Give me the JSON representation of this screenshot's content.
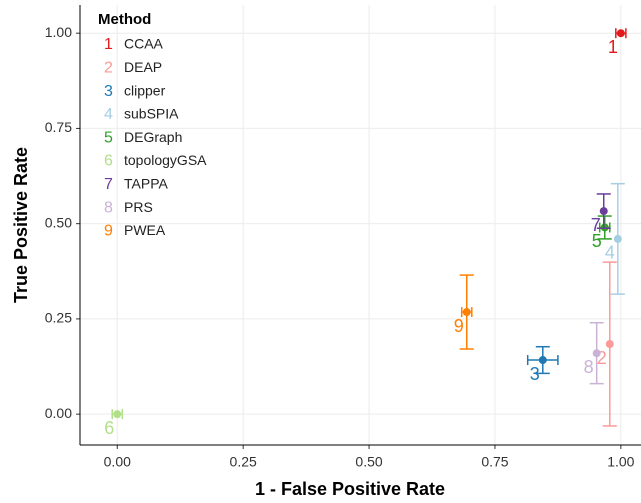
{
  "chart_data": {
    "type": "scatter",
    "x_label": "1 - False Positive Rate",
    "y_label": "True Positive Rate",
    "legend_title": "Method",
    "legend": "top-left",
    "grid": true,
    "xlim": [
      -0.074,
      1.04
    ],
    "ylim": [
      -0.081,
      1.074
    ],
    "xticks": [
      {
        "value": 0,
        "label": "0.00"
      },
      {
        "value": 0.25,
        "label": "0.25"
      },
      {
        "value": 0.5,
        "label": "0.50"
      },
      {
        "value": 0.75,
        "label": "0.75"
      },
      {
        "value": 1,
        "label": "1.00"
      }
    ],
    "yticks": [
      {
        "value": 0,
        "label": "0.00"
      },
      {
        "value": 0.25,
        "label": "0.25"
      },
      {
        "value": 0.5,
        "label": "0.50"
      },
      {
        "value": 0.75,
        "label": "0.75"
      },
      {
        "value": 1,
        "label": "1.00"
      }
    ],
    "series": [
      {
        "name": "CCAA",
        "key": "1",
        "color": "#e31a1c",
        "x": [
          1.0
        ],
        "values": [
          1.0
        ],
        "xerr": [
          0.01
        ],
        "yerr": [
          null
        ]
      },
      {
        "name": "DEAP",
        "key": "2",
        "color": "#fb9a99",
        "x": [
          0.978
        ],
        "values": [
          0.184
        ],
        "xerr": [
          null
        ],
        "yerr": [
          0.215
        ]
      },
      {
        "name": "clipper",
        "key": "3",
        "color": "#1f78b4",
        "x": [
          0.845
        ],
        "values": [
          0.142
        ],
        "xerr": [
          0.03
        ],
        "yerr": [
          0.035
        ]
      },
      {
        "name": "subSPIA",
        "key": "4",
        "color": "#a6cee3",
        "x": [
          0.994
        ],
        "values": [
          0.46
        ],
        "xerr": [
          null
        ],
        "yerr": [
          0.145
        ]
      },
      {
        "name": "DEGraph",
        "key": "5",
        "color": "#33a02c",
        "x": [
          0.968
        ],
        "values": [
          0.49
        ],
        "xerr": [
          0.01
        ],
        "yerr": [
          0.03
        ]
      },
      {
        "name": "topologyGSA",
        "key": "6",
        "color": "#b2df8a",
        "x": [
          0.0
        ],
        "values": [
          0.0
        ],
        "xerr": [
          0.01
        ],
        "yerr": [
          null
        ]
      },
      {
        "name": "TAPPA",
        "key": "7",
        "color": "#6a3d9a",
        "x": [
          0.966
        ],
        "values": [
          0.533
        ],
        "xerr": [
          null
        ],
        "yerr": [
          0.045
        ]
      },
      {
        "name": "PRS",
        "key": "8",
        "color": "#cab2d6",
        "x": [
          0.952
        ],
        "values": [
          0.16
        ],
        "xerr": [
          null
        ],
        "yerr": [
          0.08
        ]
      },
      {
        "name": "PWEA",
        "key": "9",
        "color": "#ff7f00",
        "x": [
          0.694
        ],
        "values": [
          0.268
        ],
        "xerr": [
          0.01
        ],
        "yerr": [
          0.097
        ]
      }
    ]
  }
}
